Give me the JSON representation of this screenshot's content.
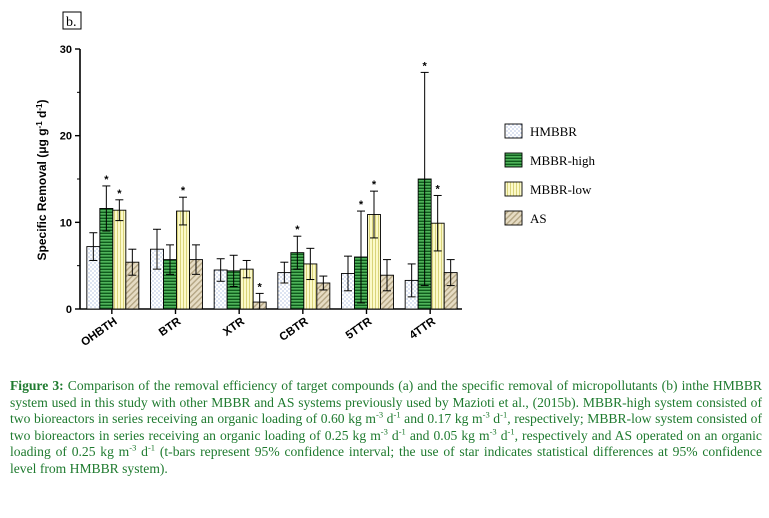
{
  "chart_data": {
    "type": "bar",
    "panel_label": "b.",
    "ylabel": "Specific Removal (μg g⁻¹ d⁻¹)",
    "ylabel_parts": {
      "main": "Specific Removal (μg g",
      "sup1": "-1",
      "mid": " d",
      "sup2": "-1",
      "end": ")"
    },
    "ylim": [
      0,
      30
    ],
    "yticks": [
      0,
      10,
      20,
      30
    ],
    "categories": [
      "OHBTH",
      "BTR",
      "XTR",
      "CBTR",
      "5TTR",
      "4TTR"
    ],
    "series": [
      {
        "name": "HMBBR",
        "values": [
          7.2,
          6.9,
          4.5,
          4.2,
          4.1,
          3.3
        ],
        "err_lo": [
          1.6,
          2.3,
          1.3,
          1.2,
          2.0,
          1.9
        ],
        "err_hi": [
          1.6,
          2.3,
          1.3,
          1.2,
          2.0,
          1.9
        ],
        "stars": [
          false,
          false,
          false,
          false,
          false,
          false
        ],
        "color": "#ffffff",
        "pattern": "dots"
      },
      {
        "name": "MBBR-high",
        "values": [
          11.6,
          5.7,
          4.4,
          6.5,
          6.0,
          15.0
        ],
        "err_lo": [
          2.6,
          1.7,
          1.8,
          1.9,
          5.3,
          12.3
        ],
        "err_hi": [
          2.6,
          1.7,
          1.8,
          1.9,
          5.3,
          12.3
        ],
        "stars": [
          true,
          false,
          false,
          true,
          true,
          true
        ],
        "color": "#2e8b3a",
        "pattern": "hstripes"
      },
      {
        "name": "MBBR-low",
        "values": [
          11.4,
          11.3,
          4.6,
          5.2,
          10.9,
          9.9
        ],
        "err_lo": [
          1.2,
          1.6,
          1.0,
          1.8,
          2.7,
          3.2
        ],
        "err_hi": [
          1.2,
          1.6,
          1.0,
          1.8,
          2.7,
          3.2
        ],
        "stars": [
          true,
          true,
          false,
          false,
          true,
          true
        ],
        "color": "#f4f1a6",
        "pattern": "vstripes"
      },
      {
        "name": "AS",
        "values": [
          5.4,
          5.7,
          0.8,
          3.0,
          3.9,
          4.2
        ],
        "err_lo": [
          1.5,
          1.7,
          1.0,
          0.8,
          1.8,
          1.5
        ],
        "err_hi": [
          1.5,
          1.7,
          1.0,
          0.8,
          1.8,
          1.5
        ],
        "stars": [
          false,
          false,
          true,
          false,
          false,
          false
        ],
        "color": "#d8cdb4",
        "pattern": "diag"
      }
    ],
    "legend_placement": "right",
    "grid": false
  },
  "caption": {
    "lead": "Figure 3:",
    "text": " Comparison of the removal efficiency of target compounds (a) and the specific removal of micropollutants (b) inthe HMBBR system used in this study with other MBBR and AS systems previously used by Mazioti et al., (2015b). MBBR-high system consisted of two bioreactors in series receiving an organic loading of 0.60 kg m",
    "sup1": "-3",
    "t1": " d",
    "sup2": "-1",
    "t2": " and 0.17 kg m",
    "sup3": "-3",
    "t3": " d",
    "sup4": "-1",
    "t4": ", respectively; MBBR-low system consisted of two bioreactors in series receiving an organic loading of 0.25 kg m",
    "sup5": "-3",
    "t5": " d",
    "sup6": "-1",
    "t6": " and 0.05 kg m",
    "sup7": "-3",
    "t7": " d",
    "sup8": "-1",
    "t8": ", respectively and AS operated on an organic loading of 0.25 kg m",
    "sup9": "-3",
    "t9": " d",
    "sup10": "-1",
    "t10": " (t-bars represent 95% confidence interval; the use of star indicates statistical differences at 95% confidence level from HMBBR system)."
  }
}
